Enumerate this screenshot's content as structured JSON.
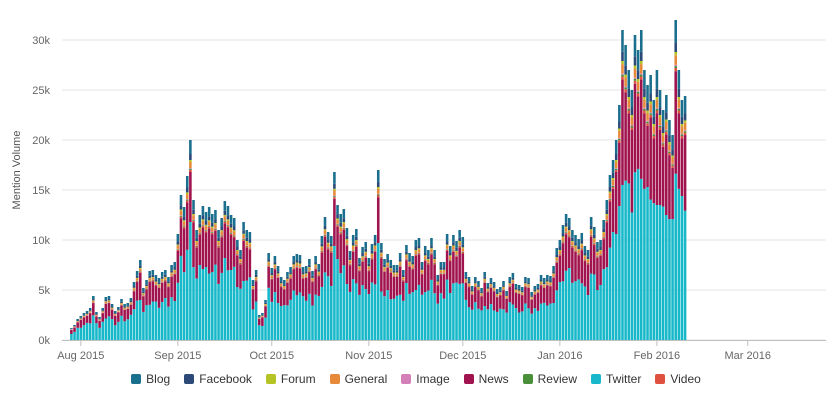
{
  "chart_data": {
    "type": "bar",
    "stacked": true,
    "ylabel": "Mention Volume",
    "ylim": [
      0,
      32000
    ],
    "y_ticks": [
      "0k",
      "5k",
      "10k",
      "15k",
      "20k",
      "25k",
      "30k"
    ],
    "y_tick_values": [
      0,
      5000,
      10000,
      15000,
      20000,
      25000,
      30000
    ],
    "x_range": [
      "2015-07-26",
      "2016-03-26"
    ],
    "x_ticks": [
      {
        "label": "Aug 2015",
        "date": "2015-08-01"
      },
      {
        "label": "Sep 2015",
        "date": "2015-09-01"
      },
      {
        "label": "Oct 2015",
        "date": "2015-10-01"
      },
      {
        "label": "Nov 2015",
        "date": "2015-11-01"
      },
      {
        "label": "Dec 2015",
        "date": "2015-12-01"
      },
      {
        "label": "Jan 2016",
        "date": "2016-01-01"
      },
      {
        "label": "Feb 2016",
        "date": "2016-02-01"
      },
      {
        "label": "Mar 2016",
        "date": "2016-03-01"
      }
    ],
    "grid": true,
    "legend_position": "bottom",
    "series_names": [
      "Blog",
      "Facebook",
      "Forum",
      "General",
      "Image",
      "News",
      "Review",
      "Twitter",
      "Video"
    ],
    "colors": {
      "Blog": "#1a6e8e",
      "Facebook": "#2b4a78",
      "Forum": "#b5c424",
      "General": "#e68a3a",
      "Image": "#d480b8",
      "News": "#a0134e",
      "Review": "#4a8f3a",
      "Twitter": "#17b8c9",
      "Video": "#e05040"
    },
    "start_date": "2015-07-29",
    "totals": [
      1200,
      1500,
      2100,
      2400,
      2700,
      2900,
      3200,
      4400,
      2800,
      2300,
      3200,
      4300,
      4400,
      3600,
      2900,
      3300,
      4100,
      3600,
      3700,
      4200,
      5800,
      6900,
      8000,
      5200,
      6000,
      6900,
      7000,
      6500,
      6200,
      6800,
      7000,
      6300,
      7500,
      7800,
      10600,
      14500,
      13300,
      16400,
      20000,
      14000,
      11000,
      12500,
      13400,
      12800,
      13300,
      12600,
      13000,
      11000,
      12200,
      13900,
      13400,
      12500,
      12200,
      10000,
      9000,
      11800,
      11000,
      10800,
      6000,
      7000,
      2500,
      2700,
      4000,
      8700,
      7200,
      8400,
      7400,
      6300,
      6000,
      6800,
      7300,
      8400,
      8600,
      8500,
      7300,
      7400,
      8100,
      6900,
      8400,
      7600,
      10400,
      12300,
      10800,
      10400,
      16800,
      13500,
      12600,
      13100,
      11200,
      8900,
      10500,
      11100,
      8200,
      9300,
      9800,
      8200,
      9600,
      10500,
      17000,
      9700,
      8100,
      8600,
      8000,
      7500,
      7500,
      8700,
      7000,
      9500,
      8700,
      8400,
      10000,
      10200,
      7800,
      9400,
      9000,
      10200,
      9000,
      6500,
      7800,
      7800,
      10600,
      9400,
      10500,
      9900,
      11000,
      10300,
      6800,
      6300,
      5400,
      6300,
      5900,
      5200,
      6800,
      5700,
      6200,
      5800,
      5100,
      5300,
      5900,
      4900,
      6300,
      6700,
      5600,
      5500,
      5300,
      6300,
      6200,
      4800,
      5400,
      5600,
      6500,
      6200,
      6500,
      6400,
      7400,
      9200,
      10000,
      11500,
      12600,
      12200,
      11000,
      10500,
      10100,
      10700,
      9400,
      9000,
      12300,
      11300,
      9800,
      10000,
      12000,
      14000,
      16500,
      18000,
      20000,
      23500,
      31000,
      29500,
      27000,
      25000,
      30500,
      29000,
      31000,
      27000,
      25500,
      26500,
      24000,
      27000,
      25000,
      23000,
      24500,
      22000,
      20500,
      32000,
      27000,
      24000,
      24400
    ]
  },
  "legend": [
    {
      "name": "Blog",
      "icon": "square-swatch"
    },
    {
      "name": "Facebook",
      "icon": "square-swatch"
    },
    {
      "name": "Forum",
      "icon": "square-swatch"
    },
    {
      "name": "General",
      "icon": "square-swatch"
    },
    {
      "name": "Image",
      "icon": "square-swatch"
    },
    {
      "name": "News",
      "icon": "square-swatch"
    },
    {
      "name": "Review",
      "icon": "square-swatch"
    },
    {
      "name": "Twitter",
      "icon": "square-swatch"
    },
    {
      "name": "Video",
      "icon": "square-swatch"
    }
  ]
}
